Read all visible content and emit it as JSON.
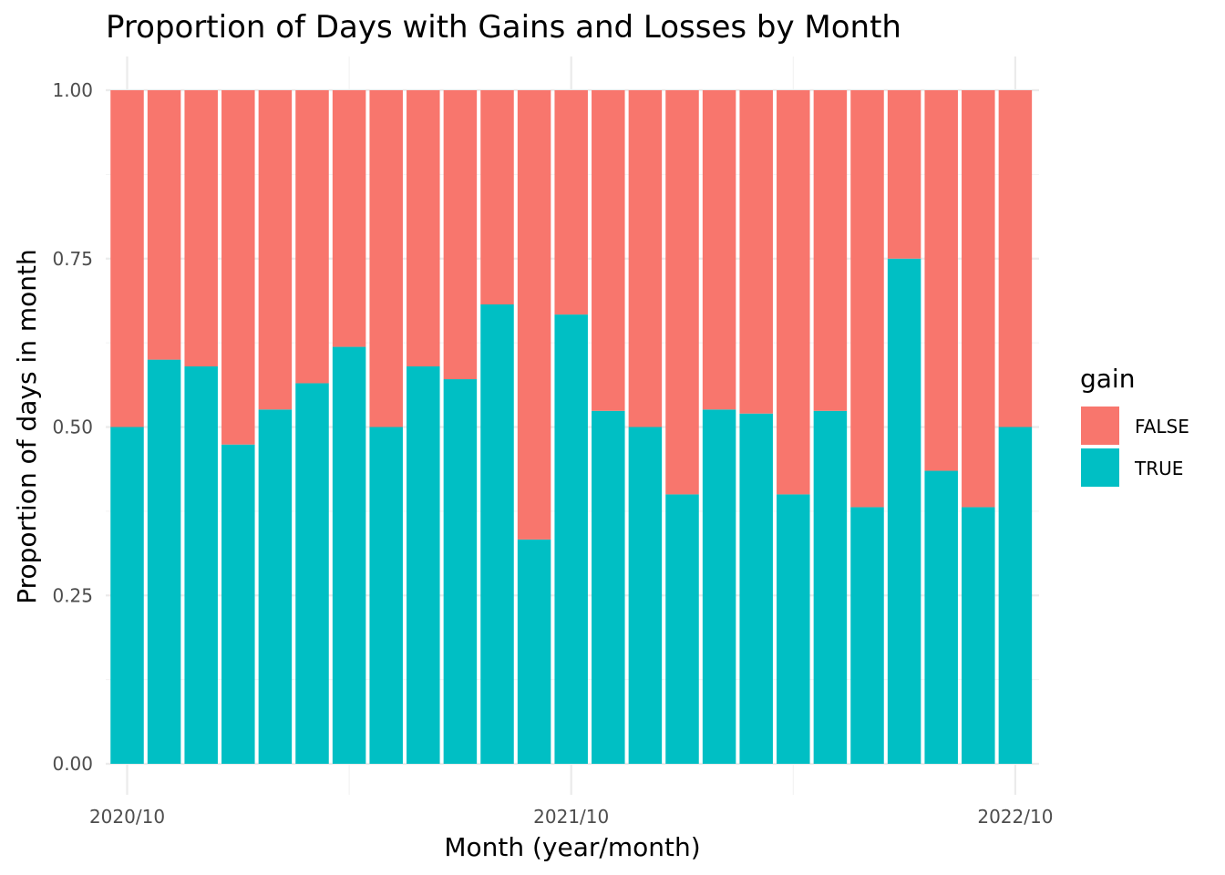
{
  "chart_data": {
    "type": "bar",
    "stacked": true,
    "title": "Proportion of Days with Gains and Losses by Month",
    "xlabel": "Month (year/month)",
    "ylabel": "Proportion of days in month",
    "ylim": [
      0,
      1
    ],
    "y_ticks": [
      "0.00",
      "0.25",
      "0.50",
      "0.75",
      "1.00"
    ],
    "x_ticks": [
      "2020/10",
      "2021/10",
      "2022/10"
    ],
    "grid": true,
    "legend": {
      "title": "gain",
      "position": "right"
    },
    "categories": [
      "2020/10",
      "2020/11",
      "2020/12",
      "2021/01",
      "2021/02",
      "2021/03",
      "2021/04",
      "2021/05",
      "2021/06",
      "2021/07",
      "2021/08",
      "2021/09",
      "2021/10",
      "2021/11",
      "2021/12",
      "2022/01",
      "2022/02",
      "2022/03",
      "2022/04",
      "2022/05",
      "2022/06",
      "2022/07",
      "2022/08",
      "2022/09",
      "2022/10"
    ],
    "series": [
      {
        "name": "FALSE",
        "color": "#F8766D",
        "values": [
          0.5,
          0.4,
          0.41,
          0.526,
          0.474,
          0.435,
          0.381,
          0.5,
          0.41,
          0.429,
          0.318,
          0.667,
          0.333,
          0.476,
          0.5,
          0.6,
          0.474,
          0.48,
          0.6,
          0.476,
          0.619,
          0.25,
          0.565,
          0.619,
          0.5
        ]
      },
      {
        "name": "TRUE",
        "color": "#00BFC4",
        "values": [
          0.5,
          0.6,
          0.59,
          0.474,
          0.526,
          0.565,
          0.619,
          0.5,
          0.59,
          0.571,
          0.682,
          0.333,
          0.667,
          0.524,
          0.5,
          0.4,
          0.526,
          0.52,
          0.4,
          0.524,
          0.381,
          0.75,
          0.435,
          0.381,
          0.5
        ]
      }
    ]
  }
}
